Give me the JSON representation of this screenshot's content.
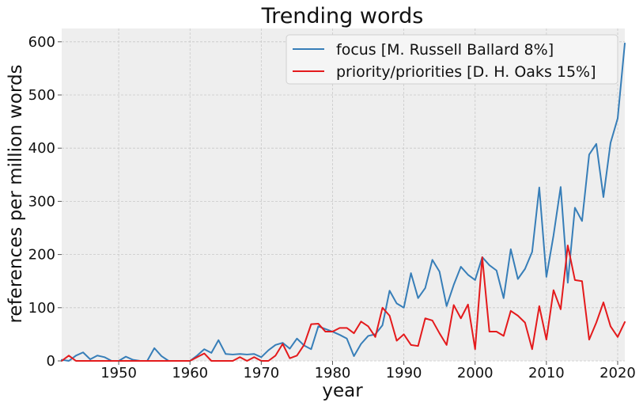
{
  "chart_data": {
    "type": "line",
    "title": "Trending words",
    "xlabel": "year",
    "ylabel": "references per million words",
    "xlim": [
      1942,
      2021
    ],
    "ylim": [
      0,
      625
    ],
    "xticks": [
      1950,
      1960,
      1970,
      1980,
      1990,
      2000,
      2010,
      2020
    ],
    "yticks": [
      0,
      100,
      200,
      300,
      400,
      500,
      600
    ],
    "grid": true,
    "legend_position": "top-right",
    "x": [
      1942,
      1943,
      1944,
      1945,
      1946,
      1947,
      1948,
      1949,
      1950,
      1951,
      1952,
      1953,
      1954,
      1955,
      1956,
      1957,
      1958,
      1959,
      1960,
      1961,
      1962,
      1963,
      1964,
      1965,
      1966,
      1967,
      1968,
      1969,
      1970,
      1971,
      1972,
      1973,
      1974,
      1975,
      1976,
      1977,
      1978,
      1979,
      1980,
      1981,
      1982,
      1983,
      1984,
      1985,
      1986,
      1987,
      1988,
      1989,
      1990,
      1991,
      1992,
      1993,
      1994,
      1995,
      1996,
      1997,
      1998,
      1999,
      2000,
      2001,
      2002,
      2003,
      2004,
      2005,
      2006,
      2007,
      2008,
      2009,
      2010,
      2011,
      2012,
      2013,
      2014,
      2015,
      2016,
      2017,
      2018,
      2019,
      2020,
      2021
    ],
    "series": [
      {
        "name": "focus [M. Russell Ballard 8%]",
        "color": "#377eb8",
        "values": [
          2,
          0,
          10,
          16,
          3,
          10,
          7,
          0,
          0,
          8,
          2,
          0,
          0,
          24,
          9,
          0,
          0,
          0,
          0,
          10,
          22,
          15,
          39,
          13,
          12,
          13,
          12,
          13,
          7,
          20,
          30,
          34,
          23,
          42,
          29,
          22,
          65,
          60,
          55,
          49,
          42,
          9,
          32,
          47,
          50,
          67,
          132,
          108,
          100,
          165,
          118,
          137,
          190,
          168,
          103,
          143,
          177,
          162,
          152,
          195,
          180,
          170,
          118,
          210,
          154,
          173,
          205,
          326,
          158,
          236,
          327,
          147,
          288,
          263,
          388,
          408,
          308,
          410,
          456,
          597
        ]
      },
      {
        "name": "priority/priorities [D. H. Oaks 15%]",
        "color": "#e41a1c",
        "values": [
          0,
          10,
          0,
          0,
          0,
          0,
          0,
          0,
          0,
          0,
          0,
          0,
          0,
          0,
          0,
          0,
          0,
          0,
          0,
          7,
          14,
          0,
          0,
          0,
          0,
          7,
          0,
          7,
          0,
          0,
          10,
          32,
          5,
          10,
          30,
          69,
          70,
          55,
          55,
          62,
          62,
          52,
          74,
          65,
          45,
          100,
          85,
          38,
          50,
          30,
          28,
          80,
          76,
          52,
          30,
          105,
          80,
          106,
          22,
          195,
          55,
          55,
          47,
          94,
          85,
          72,
          22,
          103,
          40,
          133,
          97,
          217,
          152,
          150,
          40,
          72,
          110,
          65,
          45,
          73
        ]
      }
    ]
  }
}
